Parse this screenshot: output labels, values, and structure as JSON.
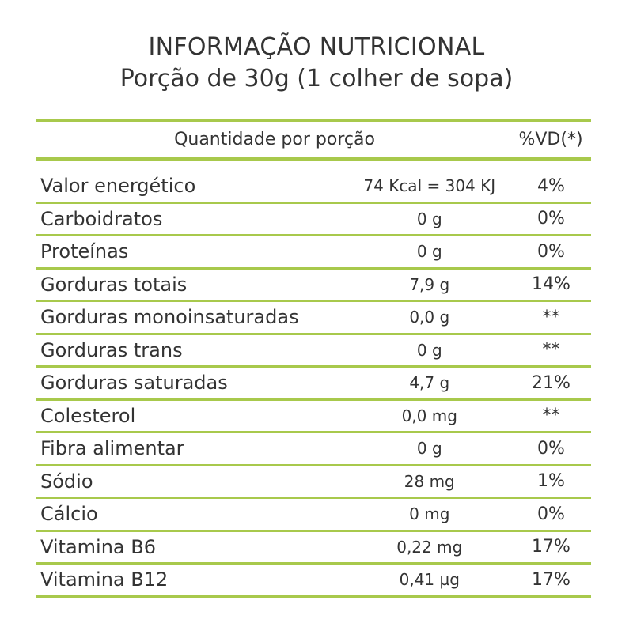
{
  "header": {
    "title": "INFORMAÇÃO NUTRICIONAL",
    "subtitle": "Porção de 30g (1 colher de sopa)"
  },
  "table": {
    "col_quantity_label": "Quantidade por porção",
    "col_vd_label": "%VD(*)",
    "rows": [
      {
        "name": "Valor energético",
        "qty": "74 Kcal = 304 KJ",
        "vd": "4%"
      },
      {
        "name": "Carboidratos",
        "qty": "0 g",
        "vd": "0%"
      },
      {
        "name": "Proteínas",
        "qty": "0 g",
        "vd": "0%"
      },
      {
        "name": "Gorduras totais",
        "qty": "7,9 g",
        "vd": "14%"
      },
      {
        "name": "Gorduras monoinsaturadas",
        "qty": "0,0 g",
        "vd": "**"
      },
      {
        "name": "Gorduras trans",
        "qty": "0 g",
        "vd": "**"
      },
      {
        "name": "Gorduras saturadas",
        "qty": "4,7 g",
        "vd": "21%"
      },
      {
        "name": "Colesterol",
        "qty": "0,0 mg",
        "vd": "**"
      },
      {
        "name": "Fibra alimentar",
        "qty": "0 g",
        "vd": "0%"
      },
      {
        "name": "Sódio",
        "qty": "28 mg",
        "vd": "1%"
      },
      {
        "name": "Cálcio",
        "qty": "0 mg",
        "vd": "0%"
      },
      {
        "name": "Vitamina B6",
        "qty": "0,22 mg",
        "vd": "17%"
      },
      {
        "name": "Vitamina B12",
        "qty": "0,41 µg",
        "vd": "17%"
      }
    ]
  },
  "colors": {
    "rule": "#a8c94c",
    "text": "#333333"
  }
}
